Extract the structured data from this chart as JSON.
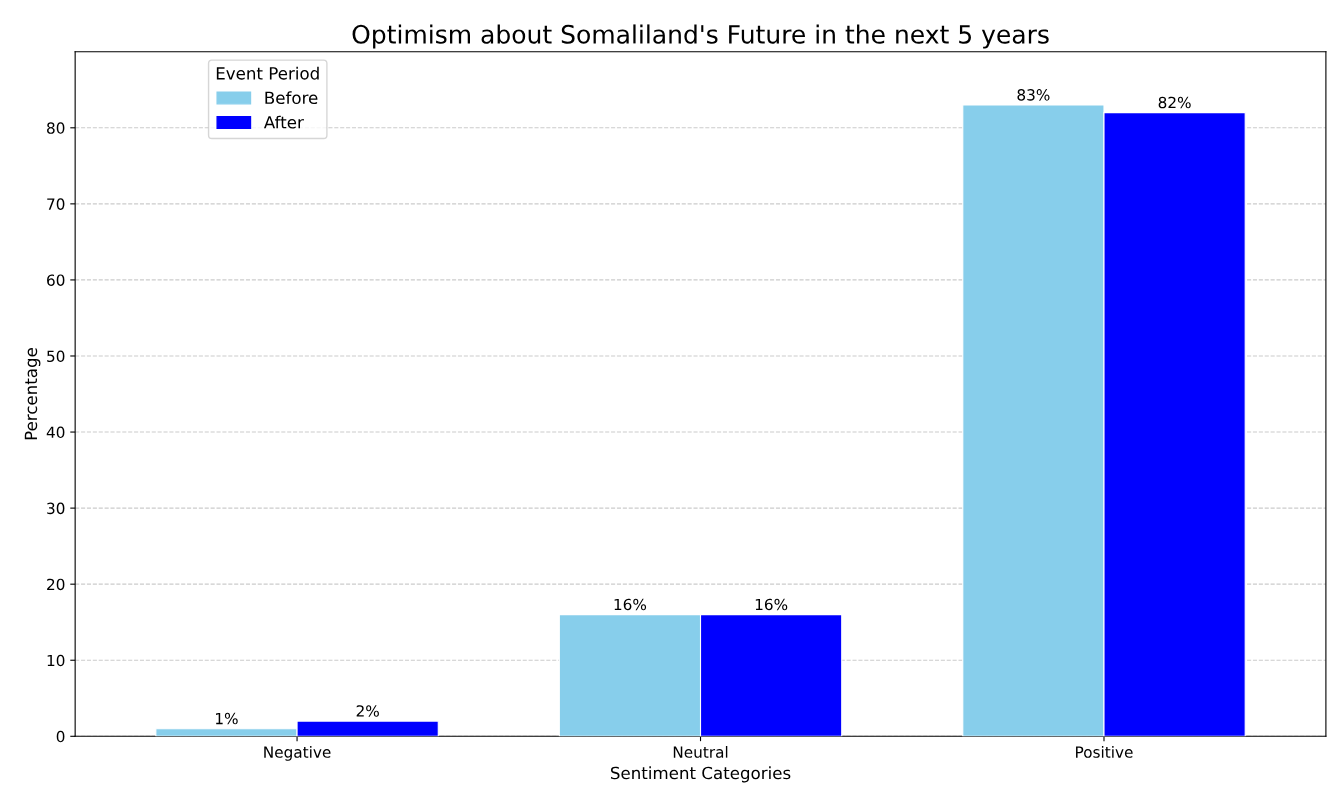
{
  "chart_data": {
    "type": "bar",
    "title": "Optimism about Somaliland's Future in the next 5 years",
    "xlabel": "Sentiment Categories",
    "ylabel": "Percentage",
    "legend_title": "Event Period",
    "categories": [
      "Negative",
      "Neutral",
      "Positive"
    ],
    "series": [
      {
        "name": "Before",
        "color": "#87ceeb",
        "values": [
          1,
          16,
          83
        ],
        "value_labels": [
          "1%",
          "16%",
          "83%"
        ]
      },
      {
        "name": "After",
        "color": "#0000ff",
        "values": [
          2,
          16,
          82
        ],
        "value_labels": [
          "2%",
          "16%",
          "82%"
        ]
      }
    ],
    "ylim": [
      0,
      90
    ],
    "yticks": [
      0,
      10,
      20,
      30,
      40,
      50,
      60,
      70,
      80
    ],
    "grid": "y",
    "legend": "top left"
  }
}
